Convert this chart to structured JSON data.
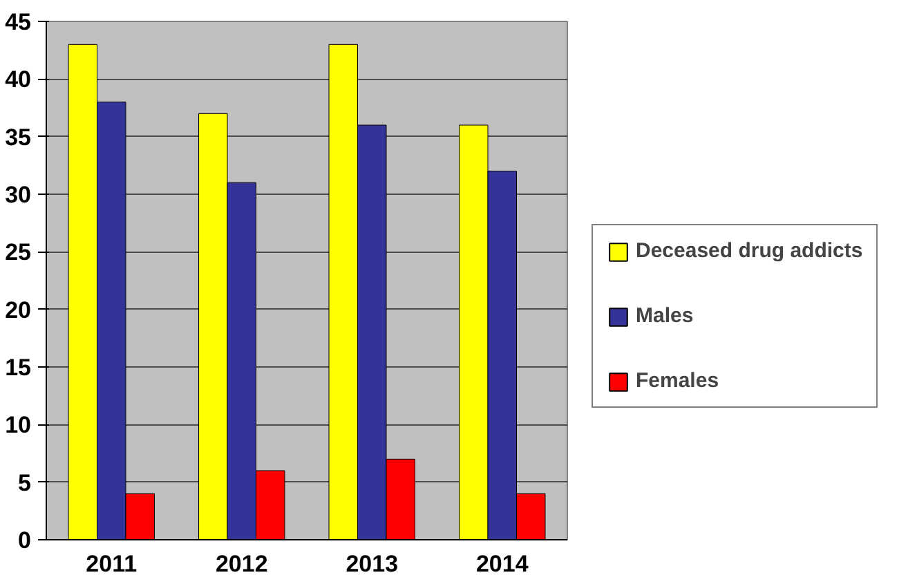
{
  "chart_data": {
    "type": "bar",
    "categories": [
      "2011",
      "2012",
      "2013",
      "2014"
    ],
    "series": [
      {
        "name": "Deceased drug addicts",
        "color": "#ffff00",
        "values": [
          43,
          37,
          43,
          36
        ]
      },
      {
        "name": "Males",
        "color": "#333399",
        "values": [
          38,
          31,
          36,
          32
        ]
      },
      {
        "name": "Females",
        "color": "#ff0000",
        "values": [
          4,
          6,
          7,
          4
        ]
      }
    ],
    "ylim": [
      0,
      45
    ],
    "yticks": [
      0,
      5,
      10,
      15,
      20,
      25,
      30,
      35,
      40,
      45
    ],
    "grid": "y",
    "legend": "right"
  }
}
